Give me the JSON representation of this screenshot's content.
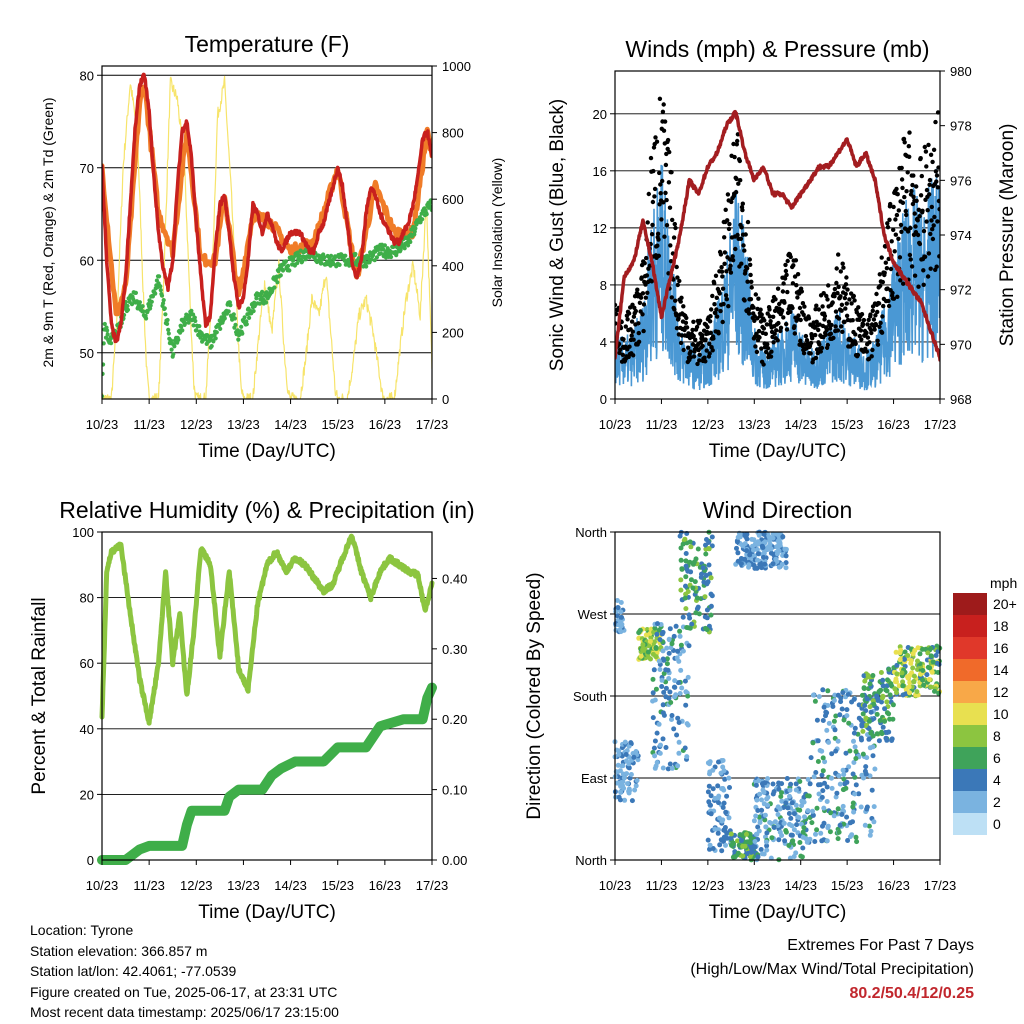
{
  "colors": {
    "temp2m": "#c8201e",
    "temp9m": "#f07c28",
    "dewpoint": "#3fae49",
    "solar": "#f7e46b",
    "gust": "#000000",
    "wind": "#4a98d4",
    "pressure": "#a31d20",
    "rh": "#8cc540",
    "precip": "#3fae49",
    "highlight": "#c1272d"
  },
  "speed_colorbar": {
    "unit_label": "mph",
    "labels": [
      "20+",
      "18",
      "16",
      "14",
      "12",
      "10",
      "8",
      "6",
      "4",
      "2",
      "0"
    ],
    "colors": [
      "#9e1b1b",
      "#c8201e",
      "#e0382a",
      "#f06a2a",
      "#f8a848",
      "#e8e050",
      "#8cc540",
      "#3fa35a",
      "#3b78b8",
      "#7ab3e0",
      "#bde0f5"
    ]
  },
  "info": {
    "location": "Location: Tyrone",
    "elevation": "Station elevation: 366.857 m",
    "latlon": "Station lat/lon: 42.4061; -77.0539",
    "created": "Figure created on Tue, 2025-06-17, at 23:31 UTC",
    "recent": "Most recent data timestamp: 2025/06/17 23:15:00"
  },
  "extremes": {
    "line1": "Extremes For Past 7 Days",
    "line2": "(High/Low/Max Wind/Total Precipitation)",
    "values": "80.2/50.4/12/0.25"
  },
  "chart_data": [
    {
      "type": "line",
      "title": "Temperature (F)",
      "xlabel": "Time (Day/UTC)",
      "ylabel": "2m & 9m T (Red, Orange) & 2m Td (Green)",
      "y2label": "Solar Insolation (Yellow)",
      "x_ticks": [
        "10/23",
        "11/23",
        "12/23",
        "13/23",
        "14/23",
        "15/23",
        "16/23",
        "17/23"
      ],
      "xlim": [
        0,
        7
      ],
      "ylim": [
        45,
        81
      ],
      "y_ticks": [
        50,
        60,
        70,
        80
      ],
      "y2lim": [
        0,
        1000
      ],
      "y2_ticks": [
        0,
        200,
        400,
        600,
        800,
        1000
      ],
      "grid": "horizontal",
      "series": [
        {
          "key": "temp2m",
          "x": [
            0,
            0.1,
            0.2,
            0.3,
            0.4,
            0.5,
            0.6,
            0.7,
            0.8,
            0.9,
            1.0,
            1.1,
            1.2,
            1.3,
            1.4,
            1.5,
            1.6,
            1.7,
            1.8,
            1.9,
            2.0,
            2.1,
            2.2,
            2.3,
            2.4,
            2.5,
            2.6,
            2.7,
            2.8,
            2.9,
            3.0,
            3.1,
            3.2,
            3.3,
            3.4,
            3.5,
            3.6,
            3.7,
            3.8,
            3.9,
            4.0,
            4.1,
            4.2,
            4.3,
            4.4,
            4.5,
            4.6,
            4.7,
            4.8,
            4.9,
            5.0,
            5.1,
            5.2,
            5.3,
            5.4,
            5.5,
            5.6,
            5.7,
            5.8,
            5.9,
            6.0,
            6.1,
            6.2,
            6.3,
            6.4,
            6.5,
            6.6,
            6.7,
            6.8,
            6.9,
            7.0
          ],
          "y": [
            70,
            60,
            53,
            51,
            53,
            58,
            66,
            74,
            79,
            80,
            76,
            69,
            63,
            59,
            57,
            60,
            68,
            74,
            75,
            71,
            64,
            58,
            53,
            54,
            61,
            66,
            67,
            63,
            58,
            55,
            56,
            60,
            66,
            65,
            63,
            65,
            64,
            62,
            61,
            62,
            63,
            63,
            63,
            62,
            61,
            61,
            63,
            64,
            66,
            68,
            70,
            68,
            64,
            60,
            58,
            60,
            65,
            68,
            67,
            65,
            64,
            63,
            62,
            62,
            63,
            64,
            66,
            69,
            73,
            74,
            71
          ]
        },
        {
          "key": "temp9m",
          "x": [
            0,
            0.3,
            0.5,
            0.8,
            0.9,
            1.2,
            1.5,
            1.8,
            2.1,
            2.4,
            2.6,
            2.9,
            3.2,
            3.6,
            4.0,
            4.5,
            5.0,
            5.4,
            5.8,
            6.2,
            6.6,
            6.9,
            7.0
          ],
          "y": [
            70,
            54,
            57,
            77,
            79,
            65,
            61,
            74,
            60,
            60,
            67,
            56,
            65,
            64,
            61,
            62,
            70,
            58,
            68,
            63,
            63,
            74,
            71
          ]
        },
        {
          "key": "dewpoint",
          "x": [
            0,
            0.05,
            0.15,
            0.3,
            0.5,
            0.7,
            0.9,
            1.0,
            1.2,
            1.35,
            1.5,
            1.7,
            1.9,
            2.1,
            2.3,
            2.5,
            2.7,
            2.9,
            3.1,
            3.3,
            3.5,
            3.8,
            4.1,
            4.4,
            4.7,
            5.0,
            5.3,
            5.6,
            5.9,
            6.2,
            6.5,
            6.8,
            7.0
          ],
          "y": [
            46,
            53,
            51,
            52,
            55,
            56,
            54,
            55,
            58,
            54,
            50,
            53,
            54,
            52,
            51,
            53,
            55,
            52,
            54,
            56,
            56,
            59,
            60,
            61,
            60,
            60,
            60,
            60,
            61,
            61,
            62,
            65,
            66
          ]
        },
        {
          "key": "solar",
          "axis": "y2",
          "x": [
            0.0,
            0.2,
            0.32,
            0.45,
            0.6,
            0.75,
            0.88,
            0.95,
            1.0,
            1.2,
            1.32,
            1.45,
            1.6,
            1.75,
            1.88,
            1.95,
            2.0,
            2.2,
            2.32,
            2.45,
            2.6,
            2.75,
            2.88,
            2.95,
            3.0,
            3.2,
            3.32,
            3.45,
            3.6,
            3.75,
            3.88,
            3.95,
            4.0,
            4.2,
            4.32,
            4.45,
            4.6,
            4.75,
            4.88,
            4.95,
            5.0,
            5.2,
            5.32,
            5.45,
            5.6,
            5.75,
            5.88,
            5.95,
            6.0,
            6.2,
            6.32,
            6.45,
            6.6,
            6.75,
            6.88,
            6.95,
            7.0
          ],
          "y": [
            0,
            0,
            250,
            700,
            950,
            800,
            300,
            80,
            0,
            0,
            400,
            950,
            900,
            700,
            250,
            40,
            0,
            0,
            300,
            850,
            950,
            600,
            200,
            30,
            0,
            0,
            180,
            350,
            200,
            400,
            120,
            20,
            0,
            0,
            120,
            300,
            250,
            380,
            150,
            20,
            0,
            0,
            100,
            250,
            300,
            200,
            80,
            10,
            0,
            0,
            150,
            300,
            400,
            250,
            600,
            300,
            100
          ]
        }
      ]
    },
    {
      "type": "line",
      "title": "Winds (mph) & Pressure (mb)",
      "xlabel": "Time (Day/UTC)",
      "ylabel": "Sonic Wind & Gust (Blue, Black)",
      "y2label": "Station Pressure (Maroon)",
      "x_ticks": [
        "10/23",
        "11/23",
        "12/23",
        "13/23",
        "14/23",
        "15/23",
        "16/23",
        "17/23"
      ],
      "xlim": [
        0,
        7
      ],
      "ylim": [
        0,
        23
      ],
      "y_ticks": [
        0,
        4,
        8,
        12,
        16,
        20
      ],
      "y2lim": [
        968,
        980
      ],
      "y2_ticks": [
        968,
        970,
        972,
        974,
        976,
        978,
        980
      ],
      "grid": "horizontal",
      "series": [
        {
          "key": "wind",
          "x": [
            0,
            0.2,
            0.4,
            0.6,
            0.8,
            1.0,
            1.2,
            1.4,
            1.6,
            1.8,
            2.0,
            2.2,
            2.4,
            2.6,
            2.8,
            3.0,
            3.2,
            3.4,
            3.6,
            3.8,
            4.0,
            4.2,
            4.4,
            4.6,
            4.8,
            5.0,
            5.2,
            5.4,
            5.6,
            5.8,
            6.0,
            6.2,
            6.4,
            6.6,
            6.8,
            7.0
          ],
          "y": [
            3,
            2.5,
            3,
            4,
            8,
            10,
            7,
            3,
            2.5,
            2,
            2.5,
            4,
            6,
            9,
            7,
            3,
            2,
            2.5,
            3,
            4,
            3,
            2,
            2.5,
            3,
            4,
            3,
            2.5,
            2,
            2.5,
            4,
            6,
            8,
            9,
            8,
            9,
            10
          ]
        },
        {
          "key": "gust",
          "x": [
            0,
            0.2,
            0.4,
            0.6,
            0.8,
            1.0,
            1.2,
            1.4,
            1.6,
            1.8,
            2.0,
            2.2,
            2.4,
            2.6,
            2.8,
            3.0,
            3.2,
            3.4,
            3.6,
            3.8,
            4.0,
            4.2,
            4.4,
            4.6,
            4.8,
            5.0,
            5.2,
            5.4,
            5.6,
            5.8,
            6.0,
            6.2,
            6.4,
            6.6,
            6.8,
            7.0
          ],
          "y": [
            5,
            4,
            5,
            7,
            13,
            16,
            12,
            6,
            4,
            4,
            4,
            7,
            10,
            14,
            11,
            6,
            4,
            5,
            6,
            8,
            6,
            4,
            5,
            6,
            8,
            6,
            5,
            4,
            5,
            8,
            11,
            13,
            14,
            12,
            14,
            15
          ]
        },
        {
          "key": "pressure",
          "axis": "y2",
          "x": [
            0,
            0.2,
            0.4,
            0.6,
            0.8,
            1.0,
            1.2,
            1.4,
            1.6,
            1.8,
            2.0,
            2.2,
            2.4,
            2.6,
            2.8,
            3.0,
            3.2,
            3.4,
            3.6,
            3.8,
            4.0,
            4.2,
            4.4,
            4.6,
            4.8,
            5.0,
            5.2,
            5.4,
            5.6,
            5.8,
            6.0,
            6.2,
            6.4,
            6.6,
            6.8,
            7.0
          ],
          "y": [
            969.5,
            972.5,
            973,
            974.5,
            973,
            971,
            972.5,
            974,
            976,
            975.5,
            976.5,
            977,
            978,
            978.5,
            977,
            976,
            976.5,
            975.5,
            975.5,
            975,
            975.5,
            976,
            976.5,
            976.5,
            977,
            977.5,
            976.5,
            977,
            976,
            974,
            973,
            972.5,
            972,
            971.5,
            970.5,
            969.5
          ]
        }
      ]
    },
    {
      "type": "line",
      "title": "Relative Humidity (%) & Precipitation (in)",
      "xlabel": "Time (Day/UTC)",
      "ylabel": "Percent & Total Rainfall",
      "x_ticks": [
        "10/23",
        "11/23",
        "12/23",
        "13/23",
        "14/23",
        "15/23",
        "16/23",
        "17/23"
      ],
      "xlim": [
        0,
        7
      ],
      "ylim": [
        0,
        100
      ],
      "y_ticks": [
        0,
        20,
        40,
        60,
        80,
        100
      ],
      "y2lim": [
        0,
        0.466
      ],
      "y2_ticks": [
        0.0,
        0.1,
        0.2,
        0.3,
        0.4
      ],
      "y2_tick_labels": [
        "0.00",
        "0.10",
        "0.20",
        "0.30",
        "0.40"
      ],
      "grid": "horizontal",
      "series": [
        {
          "key": "rh",
          "x": [
            0,
            0.1,
            0.2,
            0.4,
            0.6,
            0.8,
            1.0,
            1.2,
            1.35,
            1.5,
            1.65,
            1.8,
            1.95,
            2.1,
            2.3,
            2.5,
            2.7,
            2.9,
            3.1,
            3.3,
            3.5,
            3.7,
            3.9,
            4.1,
            4.3,
            4.5,
            4.7,
            4.9,
            5.1,
            5.3,
            5.5,
            5.7,
            5.9,
            6.1,
            6.3,
            6.5,
            6.7,
            6.85,
            7.0
          ],
          "y": [
            43,
            88,
            94,
            96,
            75,
            55,
            42,
            60,
            88,
            60,
            75,
            50,
            70,
            95,
            90,
            62,
            88,
            58,
            52,
            78,
            90,
            94,
            88,
            92,
            90,
            86,
            82,
            84,
            92,
            99,
            88,
            80,
            88,
            92,
            90,
            88,
            87,
            76,
            84
          ]
        },
        {
          "key": "precip",
          "axis": "y2",
          "step": true,
          "x": [
            0,
            0.5,
            0.8,
            1.0,
            1.7,
            1.8,
            1.9,
            2.6,
            2.7,
            2.9,
            3.4,
            3.6,
            3.8,
            4.1,
            4.7,
            5.0,
            5.6,
            5.9,
            6.4,
            6.8,
            6.9,
            7.0
          ],
          "y": [
            0,
            0,
            0.015,
            0.02,
            0.02,
            0.05,
            0.07,
            0.07,
            0.09,
            0.1,
            0.1,
            0.12,
            0.13,
            0.14,
            0.14,
            0.16,
            0.16,
            0.19,
            0.2,
            0.2,
            0.23,
            0.245
          ]
        }
      ]
    },
    {
      "type": "scatter",
      "title": "Wind Direction",
      "xlabel": "Time (Day/UTC)",
      "ylabel": "Direction (Colored By Speed)",
      "x_ticks": [
        "10/23",
        "11/23",
        "12/23",
        "13/23",
        "14/23",
        "15/23",
        "16/23",
        "17/23"
      ],
      "xlim": [
        0,
        7
      ],
      "ylim": [
        0,
        360
      ],
      "y_ticks": [
        0,
        90,
        180,
        270,
        360
      ],
      "y_tick_labels": [
        "North",
        "East",
        "South",
        "West",
        "North"
      ],
      "grid": "horizontal",
      "clusters": [
        {
          "x0": 0.0,
          "x1": 0.5,
          "dir0": 60,
          "dir1": 130,
          "spd0": 1,
          "spd1": 4
        },
        {
          "x0": 0.0,
          "x1": 0.2,
          "dir0": 250,
          "dir1": 285,
          "spd0": 1,
          "spd1": 4
        },
        {
          "x0": 0.5,
          "x1": 1.0,
          "dir0": 220,
          "dir1": 255,
          "spd0": 6,
          "spd1": 11
        },
        {
          "x0": 0.8,
          "x1": 1.6,
          "dir0": 100,
          "dir1": 260,
          "spd0": 1,
          "spd1": 6
        },
        {
          "x0": 1.4,
          "x1": 2.1,
          "dir0": 250,
          "dir1": 360,
          "spd0": 3,
          "spd1": 8
        },
        {
          "x0": 2.0,
          "x1": 2.5,
          "dir0": 10,
          "dir1": 110,
          "spd0": 1,
          "spd1": 5
        },
        {
          "x0": 2.5,
          "x1": 3.0,
          "dir0": 0,
          "dir1": 30,
          "spd0": 3,
          "spd1": 8
        },
        {
          "x0": 2.6,
          "x1": 3.7,
          "dir0": 320,
          "dir1": 360,
          "spd0": 1,
          "spd1": 5
        },
        {
          "x0": 3.0,
          "x1": 4.2,
          "dir0": 0,
          "dir1": 90,
          "spd0": 1,
          "spd1": 6
        },
        {
          "x0": 4.2,
          "x1": 5.6,
          "dir0": 20,
          "dir1": 190,
          "spd0": 1,
          "spd1": 6
        },
        {
          "x0": 5.3,
          "x1": 6.0,
          "dir0": 130,
          "dir1": 210,
          "spd0": 3,
          "spd1": 8
        },
        {
          "x0": 6.0,
          "x1": 7.0,
          "dir0": 180,
          "dir1": 235,
          "spd0": 4,
          "spd1": 11
        }
      ]
    }
  ]
}
